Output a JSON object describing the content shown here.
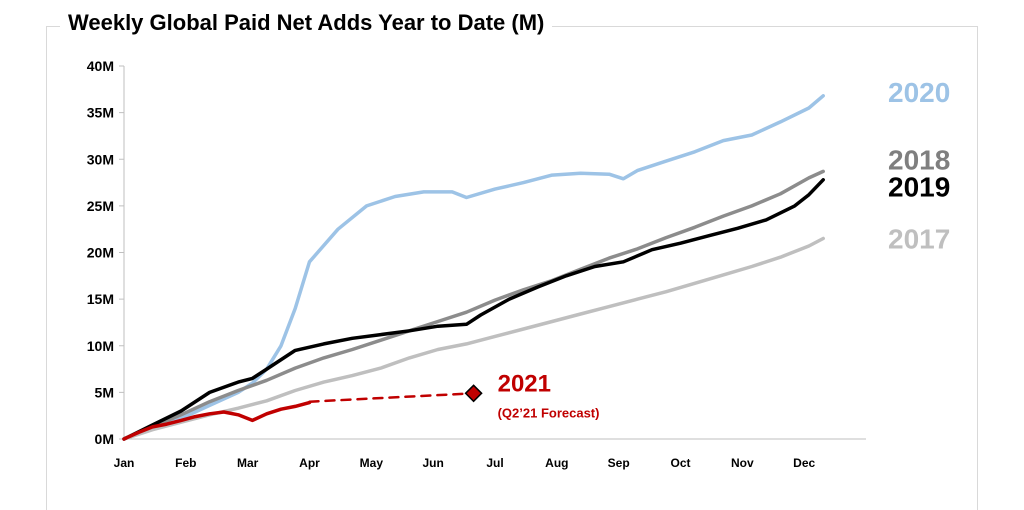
{
  "chart_data": {
    "type": "line",
    "title": "Weekly Global Paid Net Adds Year to Date (M)",
    "xlabel": "",
    "ylabel": "",
    "x_ticks": [
      "Jan",
      "Feb",
      "Mar",
      "Apr",
      "May",
      "Jun",
      "Jul",
      "Aug",
      "Sep",
      "Oct",
      "Nov",
      "Dec"
    ],
    "x_range": [
      0,
      52
    ],
    "y_ticks": [
      "0M",
      "5M",
      "10M",
      "15M",
      "20M",
      "25M",
      "30M",
      "35M",
      "40M"
    ],
    "ylim": [
      0,
      40
    ],
    "grid": false,
    "series": [
      {
        "name": "2020",
        "color": "#9DC3E6",
        "dashed": false,
        "points": [
          [
            0,
            0
          ],
          [
            2,
            1.2
          ],
          [
            4,
            2.2
          ],
          [
            6,
            3.6
          ],
          [
            8,
            5.0
          ],
          [
            9,
            6.0
          ],
          [
            10,
            7.5
          ],
          [
            11,
            10
          ],
          [
            12,
            14
          ],
          [
            13,
            19.0
          ],
          [
            15,
            22.5
          ],
          [
            17,
            25.0
          ],
          [
            19,
            26.0
          ],
          [
            21,
            26.5
          ],
          [
            23,
            26.5
          ],
          [
            24,
            25.9
          ],
          [
            26,
            26.8
          ],
          [
            28,
            27.5
          ],
          [
            30,
            28.3
          ],
          [
            32,
            28.5
          ],
          [
            34,
            28.4
          ],
          [
            35,
            27.9
          ],
          [
            36,
            28.8
          ],
          [
            38,
            29.8
          ],
          [
            40,
            30.8
          ],
          [
            42,
            32.0
          ],
          [
            44,
            32.6
          ],
          [
            46,
            34.0
          ],
          [
            48,
            35.5
          ],
          [
            49,
            36.8
          ]
        ]
      },
      {
        "name": "2018",
        "color": "#8C8C8C",
        "dashed": false,
        "points": [
          [
            0,
            0
          ],
          [
            2,
            1.3
          ],
          [
            4,
            2.6
          ],
          [
            6,
            4.0
          ],
          [
            8,
            5.2
          ],
          [
            10,
            6.3
          ],
          [
            12,
            7.6
          ],
          [
            14,
            8.7
          ],
          [
            16,
            9.6
          ],
          [
            18,
            10.6
          ],
          [
            20,
            11.6
          ],
          [
            22,
            12.6
          ],
          [
            24,
            13.6
          ],
          [
            26,
            14.9
          ],
          [
            28,
            16.0
          ],
          [
            30,
            17.0
          ],
          [
            32,
            18.2
          ],
          [
            34,
            19.4
          ],
          [
            36,
            20.4
          ],
          [
            38,
            21.6
          ],
          [
            40,
            22.7
          ],
          [
            42,
            23.9
          ],
          [
            44,
            25.0
          ],
          [
            46,
            26.3
          ],
          [
            48,
            28.0
          ],
          [
            49,
            28.7
          ]
        ]
      },
      {
        "name": "2019",
        "color": "#000000",
        "dashed": false,
        "points": [
          [
            0,
            0
          ],
          [
            2,
            1.5
          ],
          [
            4,
            3.0
          ],
          [
            6,
            5.0
          ],
          [
            8,
            6.1
          ],
          [
            9,
            6.5
          ],
          [
            10,
            7.5
          ],
          [
            12,
            9.5
          ],
          [
            14,
            10.2
          ],
          [
            16,
            10.8
          ],
          [
            18,
            11.2
          ],
          [
            20,
            11.6
          ],
          [
            22,
            12.1
          ],
          [
            24,
            12.3
          ],
          [
            25,
            13.3
          ],
          [
            27,
            15.0
          ],
          [
            29,
            16.3
          ],
          [
            31,
            17.5
          ],
          [
            33,
            18.5
          ],
          [
            35,
            19.0
          ],
          [
            37,
            20.3
          ],
          [
            39,
            21.0
          ],
          [
            41,
            21.8
          ],
          [
            43,
            22.6
          ],
          [
            45,
            23.5
          ],
          [
            47,
            25.0
          ],
          [
            48,
            26.2
          ],
          [
            49,
            27.8
          ]
        ]
      },
      {
        "name": "2017",
        "color": "#BFBFBF",
        "dashed": false,
        "points": [
          [
            0,
            0
          ],
          [
            2,
            1.0
          ],
          [
            4,
            1.8
          ],
          [
            6,
            2.6
          ],
          [
            8,
            3.3
          ],
          [
            10,
            4.1
          ],
          [
            12,
            5.2
          ],
          [
            14,
            6.1
          ],
          [
            16,
            6.8
          ],
          [
            18,
            7.6
          ],
          [
            20,
            8.7
          ],
          [
            22,
            9.6
          ],
          [
            24,
            10.2
          ],
          [
            26,
            11.0
          ],
          [
            28,
            11.8
          ],
          [
            30,
            12.6
          ],
          [
            32,
            13.4
          ],
          [
            34,
            14.2
          ],
          [
            36,
            15.0
          ],
          [
            38,
            15.8
          ],
          [
            40,
            16.7
          ],
          [
            42,
            17.6
          ],
          [
            44,
            18.5
          ],
          [
            46,
            19.5
          ],
          [
            48,
            20.7
          ],
          [
            49,
            21.5
          ]
        ]
      },
      {
        "name": "2021",
        "color": "#C00000",
        "dashed": false,
        "points": [
          [
            0,
            0
          ],
          [
            1,
            0.7
          ],
          [
            2,
            1.3
          ],
          [
            3,
            1.6
          ],
          [
            4,
            2.0
          ],
          [
            5,
            2.4
          ],
          [
            6,
            2.7
          ],
          [
            7,
            2.9
          ],
          [
            8,
            2.6
          ],
          [
            9,
            2.0
          ],
          [
            10,
            2.7
          ],
          [
            11,
            3.2
          ],
          [
            12,
            3.5
          ],
          [
            13,
            3.9
          ]
        ]
      },
      {
        "name": "2021 forecast",
        "color": "#C00000",
        "dashed": true,
        "points": [
          [
            13,
            4.0
          ],
          [
            24.5,
            4.9
          ]
        ]
      }
    ],
    "series_labels": [
      {
        "text": "2020",
        "color": "#9DC3E6",
        "y": 37.2
      },
      {
        "text": "2018",
        "color": "#7F7F7F",
        "y": 30.0
      },
      {
        "text": "2019",
        "color": "#000000",
        "y": 27.1
      },
      {
        "text": "2017",
        "color": "#BFBFBF",
        "y": 21.5
      }
    ],
    "annotation": {
      "marker_x": 24.5,
      "marker_y": 4.9,
      "color": "#C00000",
      "label": "2021",
      "sublabel": "(Q2’21 Forecast)"
    }
  }
}
